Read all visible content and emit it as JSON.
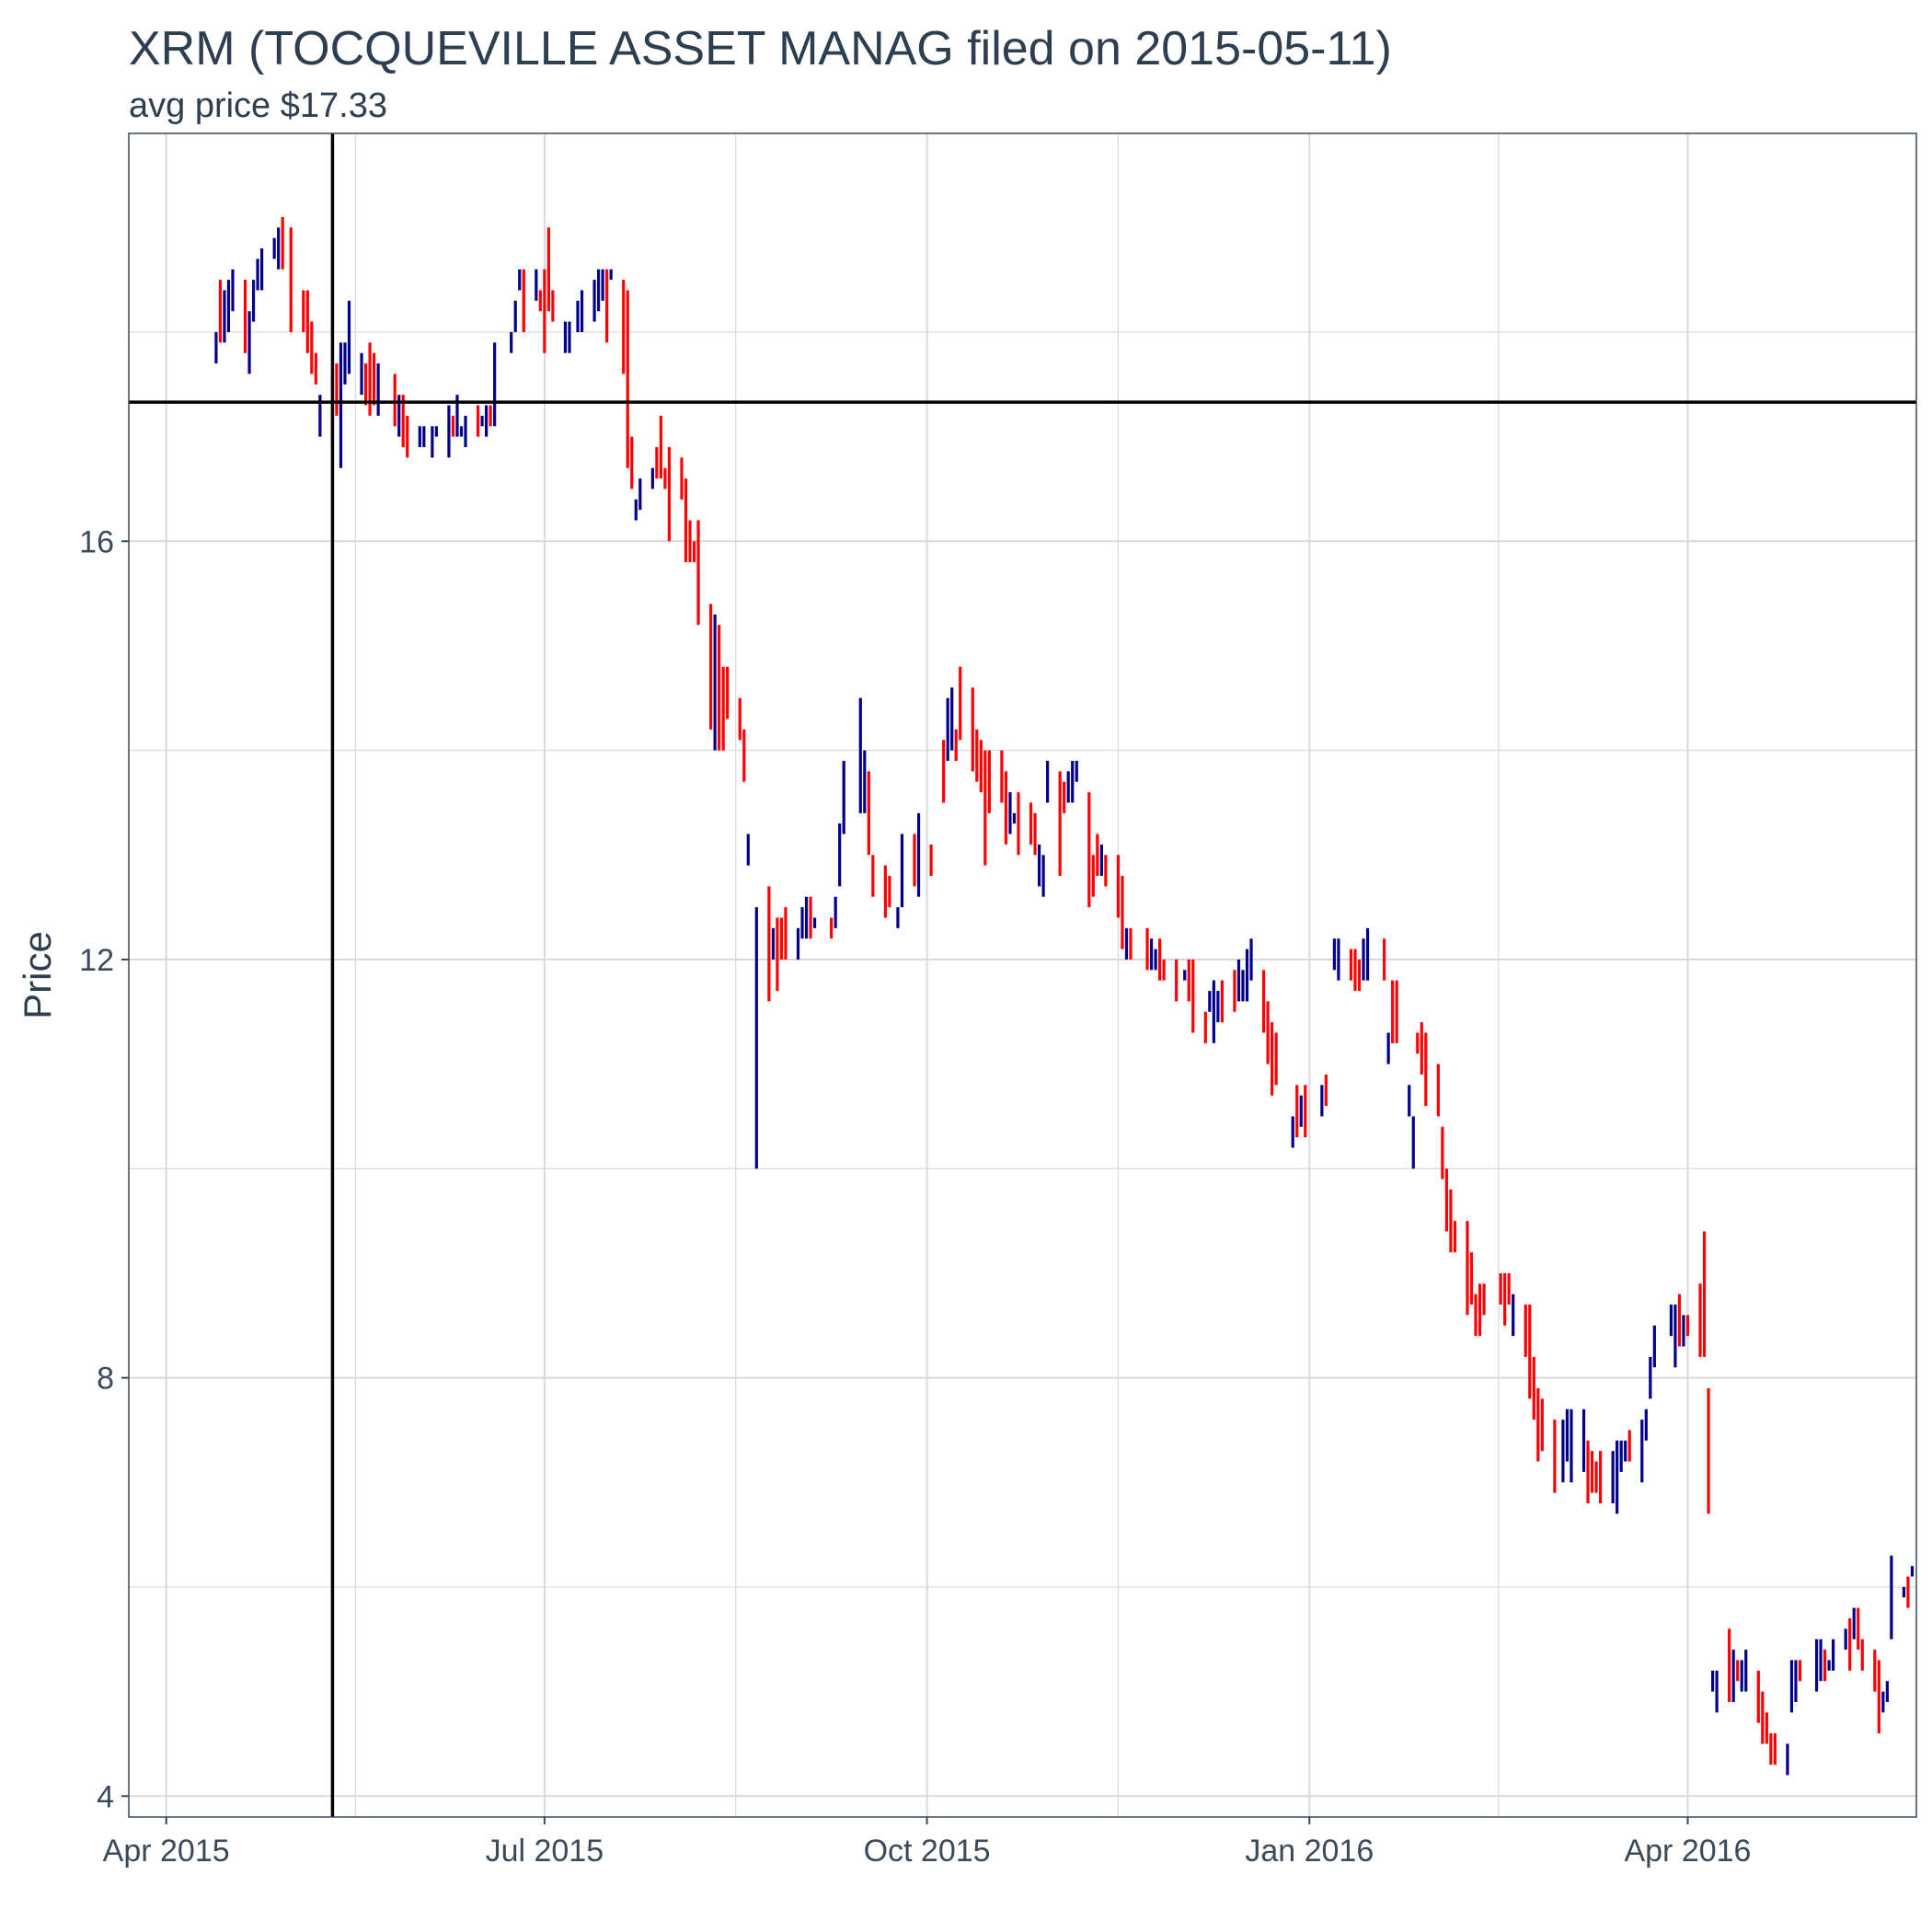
{
  "chart_data": {
    "type": "ohlc",
    "title": "XRM (TOCQUEVILLE ASSET MANAG filed on 2015-05-11)",
    "subtitle": "avg price $17.33",
    "xlabel": "",
    "ylabel": "Price",
    "x_tick_labels": [
      "Apr 2015",
      "Jul 2015",
      "Oct 2015",
      "Jan 2016",
      "Apr 2016"
    ],
    "x_tick_dates": [
      "2015-04-01",
      "2015-07-01",
      "2015-10-01",
      "2016-01-01",
      "2016-04-01"
    ],
    "y_ticks": [
      4,
      8,
      12,
      16
    ],
    "y_minor_ticks": [
      6,
      10,
      14,
      18
    ],
    "xlim": [
      "2015-03-23",
      "2016-05-26"
    ],
    "ylim": [
      3.8,
      19.9
    ],
    "grid": true,
    "legend": "none",
    "colors": {
      "up": "#00008b",
      "down": "#ff0000",
      "reference": "#000000",
      "grid": "#d9d9d9",
      "border": "#34495e"
    },
    "reference_lines": {
      "filing_date": "2015-05-11",
      "avg_price": 17.33
    },
    "up_bars": [
      [
        "2015-04-13",
        17.7,
        18.0
      ],
      [
        "2015-04-15",
        17.9,
        18.4
      ],
      [
        "2015-04-16",
        18.0,
        18.5
      ],
      [
        "2015-04-17",
        18.2,
        18.6
      ],
      [
        "2015-04-21",
        17.6,
        18.2
      ],
      [
        "2015-04-22",
        18.1,
        18.5
      ],
      [
        "2015-04-23",
        18.4,
        18.7
      ],
      [
        "2015-04-24",
        18.4,
        18.8
      ],
      [
        "2015-04-27",
        18.7,
        18.9
      ],
      [
        "2015-04-28",
        18.6,
        19.0
      ],
      [
        "2015-05-08",
        17.0,
        17.4
      ],
      [
        "2015-05-11",
        16.9,
        17.6
      ],
      [
        "2015-05-13",
        16.7,
        17.9
      ],
      [
        "2015-05-14",
        17.5,
        17.9
      ],
      [
        "2015-05-15",
        17.6,
        18.3
      ],
      [
        "2015-05-18",
        17.4,
        17.8
      ],
      [
        "2015-05-22",
        17.2,
        17.7
      ],
      [
        "2015-05-27",
        17.0,
        17.4
      ],
      [
        "2015-06-01",
        16.9,
        17.1
      ],
      [
        "2015-06-02",
        16.9,
        17.1
      ],
      [
        "2015-06-04",
        16.8,
        17.1
      ],
      [
        "2015-06-05",
        17.0,
        17.1
      ],
      [
        "2015-06-08",
        16.8,
        17.3
      ],
      [
        "2015-06-10",
        17.0,
        17.4
      ],
      [
        "2015-06-11",
        17.0,
        17.1
      ],
      [
        "2015-06-12",
        16.9,
        17.2
      ],
      [
        "2015-06-16",
        17.1,
        17.2
      ],
      [
        "2015-06-17",
        17.0,
        17.3
      ],
      [
        "2015-06-19",
        17.1,
        17.9
      ],
      [
        "2015-06-23",
        17.8,
        18.0
      ],
      [
        "2015-06-24",
        18.0,
        18.3
      ],
      [
        "2015-06-25",
        18.4,
        18.6
      ],
      [
        "2015-06-29",
        18.3,
        18.6
      ],
      [
        "2015-07-06",
        17.8,
        18.1
      ],
      [
        "2015-07-07",
        17.8,
        18.1
      ],
      [
        "2015-07-09",
        18.0,
        18.3
      ],
      [
        "2015-07-10",
        18.0,
        18.4
      ],
      [
        "2015-07-13",
        18.1,
        18.5
      ],
      [
        "2015-07-14",
        18.2,
        18.6
      ],
      [
        "2015-07-15",
        18.3,
        18.6
      ],
      [
        "2015-07-17",
        18.5,
        18.6
      ],
      [
        "2015-07-23",
        16.2,
        16.4
      ],
      [
        "2015-07-24",
        16.3,
        16.6
      ],
      [
        "2015-07-27",
        16.5,
        16.7
      ],
      [
        "2015-08-11",
        14.0,
        15.3
      ],
      [
        "2015-08-19",
        12.9,
        13.2
      ],
      [
        "2015-08-21",
        10.0,
        12.5
      ],
      [
        "2015-08-25",
        12.0,
        12.3
      ],
      [
        "2015-08-31",
        12.0,
        12.3
      ],
      [
        "2015-09-01",
        12.2,
        12.5
      ],
      [
        "2015-09-02",
        12.2,
        12.6
      ],
      [
        "2015-09-04",
        12.3,
        12.4
      ],
      [
        "2015-09-09",
        12.3,
        12.6
      ],
      [
        "2015-09-10",
        12.7,
        13.3
      ],
      [
        "2015-09-11",
        13.2,
        13.9
      ],
      [
        "2015-09-15",
        13.4,
        14.5
      ],
      [
        "2015-09-16",
        13.4,
        14.0
      ],
      [
        "2015-09-24",
        12.3,
        12.5
      ],
      [
        "2015-09-25",
        12.5,
        13.2
      ],
      [
        "2015-09-29",
        12.6,
        13.4
      ],
      [
        "2015-10-06",
        13.9,
        14.5
      ],
      [
        "2015-10-07",
        14.0,
        14.6
      ],
      [
        "2015-10-21",
        13.2,
        13.6
      ],
      [
        "2015-10-22",
        13.3,
        13.4
      ],
      [
        "2015-10-28",
        12.7,
        13.1
      ],
      [
        "2015-10-29",
        12.6,
        13.0
      ],
      [
        "2015-10-30",
        13.5,
        13.9
      ],
      [
        "2015-11-04",
        13.5,
        13.8
      ],
      [
        "2015-11-05",
        13.5,
        13.9
      ],
      [
        "2015-11-06",
        13.7,
        13.9
      ],
      [
        "2015-11-12",
        12.8,
        13.1
      ],
      [
        "2015-11-18",
        12.0,
        12.3
      ],
      [
        "2015-11-24",
        11.9,
        12.2
      ],
      [
        "2015-11-25",
        11.9,
        12.1
      ],
      [
        "2015-12-02",
        11.8,
        11.9
      ],
      [
        "2015-12-08",
        11.5,
        11.7
      ],
      [
        "2015-12-09",
        11.2,
        11.8
      ],
      [
        "2015-12-10",
        11.4,
        11.7
      ],
      [
        "2015-12-15",
        11.6,
        12.0
      ],
      [
        "2015-12-16",
        11.6,
        11.9
      ],
      [
        "2015-12-17",
        11.6,
        12.1
      ],
      [
        "2015-12-18",
        11.8,
        12.2
      ],
      [
        "2015-12-28",
        10.2,
        10.5
      ],
      [
        "2015-12-30",
        10.4,
        10.7
      ],
      [
        "2016-01-04",
        10.5,
        10.8
      ],
      [
        "2016-01-07",
        11.9,
        12.2
      ],
      [
        "2016-01-08",
        11.8,
        12.2
      ],
      [
        "2016-01-14",
        11.8,
        12.2
      ],
      [
        "2016-01-15",
        11.8,
        12.3
      ],
      [
        "2016-01-20",
        11.0,
        11.3
      ],
      [
        "2016-01-25",
        10.5,
        10.8
      ],
      [
        "2016-01-26",
        10.0,
        10.5
      ],
      [
        "2016-02-19",
        8.4,
        8.8
      ],
      [
        "2016-03-02",
        7.0,
        7.6
      ],
      [
        "2016-03-03",
        7.2,
        7.7
      ],
      [
        "2016-03-04",
        7.0,
        7.7
      ],
      [
        "2016-03-07",
        7.1,
        7.7
      ],
      [
        "2016-03-14",
        6.8,
        7.3
      ],
      [
        "2016-03-15",
        6.7,
        7.4
      ],
      [
        "2016-03-16",
        7.1,
        7.4
      ],
      [
        "2016-03-17",
        7.2,
        7.4
      ],
      [
        "2016-03-21",
        7.0,
        7.6
      ],
      [
        "2016-03-22",
        7.4,
        7.7
      ],
      [
        "2016-03-23",
        7.8,
        8.2
      ],
      [
        "2016-03-24",
        8.1,
        8.5
      ],
      [
        "2016-03-28",
        8.4,
        8.7
      ],
      [
        "2016-03-29",
        8.1,
        8.7
      ],
      [
        "2016-03-31",
        8.3,
        8.6
      ],
      [
        "2016-04-07",
        5.0,
        5.2
      ],
      [
        "2016-04-08",
        4.8,
        5.2
      ],
      [
        "2016-04-12",
        4.9,
        5.4
      ],
      [
        "2016-04-14",
        5.0,
        5.3
      ],
      [
        "2016-04-15",
        5.0,
        5.4
      ],
      [
        "2016-04-25",
        4.2,
        4.5
      ],
      [
        "2016-04-26",
        4.8,
        5.3
      ],
      [
        "2016-04-27",
        4.9,
        5.3
      ],
      [
        "2016-05-02",
        5.0,
        5.5
      ],
      [
        "2016-05-03",
        5.1,
        5.5
      ],
      [
        "2016-05-05",
        5.2,
        5.3
      ],
      [
        "2016-05-06",
        5.2,
        5.5
      ],
      [
        "2016-05-09",
        5.4,
        5.6
      ],
      [
        "2016-05-11",
        5.5,
        5.8
      ],
      [
        "2016-05-18",
        4.8,
        5.0
      ],
      [
        "2016-05-19",
        4.9,
        5.1
      ],
      [
        "2016-05-20",
        5.5,
        6.3
      ],
      [
        "2016-05-23",
        5.9,
        6.0
      ],
      [
        "2016-05-25",
        6.1,
        6.2
      ]
    ],
    "down_bars": [
      [
        "2015-04-14",
        17.9,
        18.5
      ],
      [
        "2015-04-20",
        17.8,
        18.5
      ],
      [
        "2015-04-29",
        18.6,
        19.1
      ],
      [
        "2015-05-01",
        18.0,
        19.0
      ],
      [
        "2015-05-04",
        18.0,
        18.4
      ],
      [
        "2015-05-05",
        17.8,
        18.4
      ],
      [
        "2015-05-06",
        17.6,
        18.1
      ],
      [
        "2015-05-07",
        17.5,
        17.8
      ],
      [
        "2015-05-12",
        17.2,
        17.7
      ],
      [
        "2015-05-19",
        17.3,
        17.7
      ],
      [
        "2015-05-20",
        17.2,
        17.9
      ],
      [
        "2015-05-21",
        17.3,
        17.8
      ],
      [
        "2015-05-26",
        17.1,
        17.6
      ],
      [
        "2015-05-28",
        16.9,
        17.4
      ],
      [
        "2015-05-29",
        16.8,
        17.2
      ],
      [
        "2015-06-09",
        17.0,
        17.2
      ],
      [
        "2015-06-15",
        17.0,
        17.3
      ],
      [
        "2015-06-18",
        17.1,
        17.3
      ],
      [
        "2015-06-26",
        18.0,
        18.6
      ],
      [
        "2015-06-30",
        18.2,
        18.4
      ],
      [
        "2015-07-01",
        17.8,
        18.6
      ],
      [
        "2015-07-02",
        18.2,
        19.0
      ],
      [
        "2015-07-03",
        18.1,
        18.4
      ],
      [
        "2015-07-16",
        17.9,
        18.6
      ],
      [
        "2015-07-20",
        17.6,
        18.5
      ],
      [
        "2015-07-21",
        16.7,
        18.4
      ],
      [
        "2015-07-22",
        16.5,
        17.0
      ],
      [
        "2015-07-28",
        16.6,
        16.9
      ],
      [
        "2015-07-29",
        16.6,
        17.2
      ],
      [
        "2015-07-30",
        16.5,
        16.7
      ],
      [
        "2015-07-31",
        16.0,
        16.9
      ],
      [
        "2015-08-03",
        16.4,
        16.8
      ],
      [
        "2015-08-04",
        15.8,
        16.6
      ],
      [
        "2015-08-05",
        15.8,
        16.2
      ],
      [
        "2015-08-06",
        15.8,
        16.0
      ],
      [
        "2015-08-07",
        15.2,
        16.2
      ],
      [
        "2015-08-10",
        14.2,
        15.4
      ],
      [
        "2015-08-12",
        14.0,
        15.2
      ],
      [
        "2015-08-13",
        14.0,
        14.8
      ],
      [
        "2015-08-14",
        14.3,
        14.8
      ],
      [
        "2015-08-17",
        14.1,
        14.5
      ],
      [
        "2015-08-18",
        13.7,
        14.2
      ],
      [
        "2015-08-24",
        11.6,
        12.7
      ],
      [
        "2015-08-26",
        11.7,
        12.4
      ],
      [
        "2015-08-27",
        12.0,
        12.4
      ],
      [
        "2015-08-28",
        12.0,
        12.5
      ],
      [
        "2015-09-03",
        12.2,
        12.6
      ],
      [
        "2015-09-08",
        12.2,
        12.4
      ],
      [
        "2015-09-17",
        13.0,
        13.8
      ],
      [
        "2015-09-18",
        12.6,
        13.0
      ],
      [
        "2015-09-21",
        12.4,
        12.9
      ],
      [
        "2015-09-22",
        12.5,
        12.8
      ],
      [
        "2015-09-28",
        12.7,
        13.2
      ],
      [
        "2015-10-02",
        12.8,
        13.1
      ],
      [
        "2015-10-05",
        13.5,
        14.1
      ],
      [
        "2015-10-08",
        13.9,
        14.2
      ],
      [
        "2015-10-09",
        14.1,
        14.8
      ],
      [
        "2015-10-12",
        13.8,
        14.6
      ],
      [
        "2015-10-13",
        13.7,
        14.2
      ],
      [
        "2015-10-14",
        13.6,
        14.1
      ],
      [
        "2015-10-15",
        12.9,
        14.0
      ],
      [
        "2015-10-16",
        13.4,
        14.0
      ],
      [
        "2015-10-19",
        13.5,
        14.0
      ],
      [
        "2015-10-20",
        13.1,
        13.8
      ],
      [
        "2015-10-23",
        13.0,
        13.6
      ],
      [
        "2015-10-26",
        13.1,
        13.5
      ],
      [
        "2015-10-27",
        13.0,
        13.4
      ],
      [
        "2015-11-02",
        12.8,
        13.8
      ],
      [
        "2015-11-03",
        13.4,
        13.7
      ],
      [
        "2015-11-09",
        12.5,
        13.6
      ],
      [
        "2015-11-10",
        12.6,
        13.0
      ],
      [
        "2015-11-11",
        12.8,
        13.2
      ],
      [
        "2015-11-13",
        12.7,
        13.0
      ],
      [
        "2015-11-16",
        12.4,
        13.0
      ],
      [
        "2015-11-17",
        12.1,
        12.8
      ],
      [
        "2015-11-19",
        12.0,
        12.3
      ],
      [
        "2015-11-23",
        11.9,
        12.3
      ],
      [
        "2015-11-26",
        11.8,
        12.2
      ],
      [
        "2015-11-27",
        11.8,
        12.0
      ],
      [
        "2015-11-30",
        11.6,
        12.0
      ],
      [
        "2015-12-03",
        11.6,
        12.0
      ],
      [
        "2015-12-04",
        11.3,
        12.0
      ],
      [
        "2015-12-07",
        11.2,
        11.5
      ],
      [
        "2015-12-11",
        11.4,
        11.8
      ],
      [
        "2015-12-14",
        11.5,
        11.9
      ],
      [
        "2015-12-21",
        11.3,
        11.9
      ],
      [
        "2015-12-22",
        11.0,
        11.6
      ],
      [
        "2015-12-23",
        10.7,
        11.4
      ],
      [
        "2015-12-24",
        10.8,
        11.3
      ],
      [
        "2015-12-29",
        10.3,
        10.8
      ],
      [
        "2015-12-31",
        10.3,
        10.8
      ],
      [
        "2016-01-05",
        10.6,
        10.9
      ],
      [
        "2016-01-11",
        11.8,
        12.1
      ],
      [
        "2016-01-12",
        11.7,
        12.1
      ],
      [
        "2016-01-13",
        11.7,
        12.0
      ],
      [
        "2016-01-19",
        11.8,
        12.2
      ],
      [
        "2016-01-21",
        11.2,
        11.8
      ],
      [
        "2016-01-22",
        11.2,
        11.8
      ],
      [
        "2016-01-27",
        11.1,
        11.3
      ],
      [
        "2016-01-28",
        10.9,
        11.4
      ],
      [
        "2016-01-29",
        10.6,
        11.3
      ],
      [
        "2016-02-01",
        10.5,
        11.0
      ],
      [
        "2016-02-02",
        9.9,
        10.4
      ],
      [
        "2016-02-03",
        9.4,
        10.0
      ],
      [
        "2016-02-04",
        9.2,
        9.8
      ],
      [
        "2016-02-05",
        9.2,
        9.5
      ],
      [
        "2016-02-08",
        8.6,
        9.5
      ],
      [
        "2016-02-09",
        8.7,
        9.2
      ],
      [
        "2016-02-10",
        8.4,
        8.8
      ],
      [
        "2016-02-11",
        8.4,
        8.9
      ],
      [
        "2016-02-12",
        8.6,
        8.9
      ],
      [
        "2016-02-16",
        8.7,
        9.0
      ],
      [
        "2016-02-17",
        8.5,
        9.0
      ],
      [
        "2016-02-18",
        8.7,
        9.0
      ],
      [
        "2016-02-22",
        8.2,
        8.7
      ],
      [
        "2016-02-23",
        7.8,
        8.7
      ],
      [
        "2016-02-24",
        7.6,
        8.2
      ],
      [
        "2016-02-25",
        7.2,
        7.9
      ],
      [
        "2016-02-26",
        7.3,
        7.8
      ],
      [
        "2016-02-29",
        6.9,
        7.6
      ],
      [
        "2016-03-08",
        6.8,
        7.4
      ],
      [
        "2016-03-09",
        6.9,
        7.3
      ],
      [
        "2016-03-10",
        6.9,
        7.2
      ],
      [
        "2016-03-11",
        6.8,
        7.3
      ],
      [
        "2016-03-18",
        7.2,
        7.5
      ],
      [
        "2016-03-30",
        8.3,
        8.8
      ],
      [
        "2016-04-01",
        8.4,
        8.6
      ],
      [
        "2016-04-04",
        8.2,
        8.9
      ],
      [
        "2016-04-05",
        8.2,
        9.4
      ],
      [
        "2016-04-06",
        6.7,
        7.9
      ],
      [
        "2016-04-11",
        4.9,
        5.6
      ],
      [
        "2016-04-13",
        5.1,
        5.3
      ],
      [
        "2016-04-18",
        4.7,
        5.2
      ],
      [
        "2016-04-19",
        4.5,
        5.0
      ],
      [
        "2016-04-20",
        4.5,
        4.8
      ],
      [
        "2016-04-21",
        4.3,
        4.6
      ],
      [
        "2016-04-22",
        4.3,
        4.6
      ],
      [
        "2016-04-28",
        5.1,
        5.3
      ],
      [
        "2016-05-04",
        5.1,
        5.4
      ],
      [
        "2016-05-10",
        5.2,
        5.7
      ],
      [
        "2016-05-12",
        5.4,
        5.8
      ],
      [
        "2016-05-13",
        5.2,
        5.5
      ],
      [
        "2016-05-16",
        5.0,
        5.4
      ],
      [
        "2016-05-17",
        4.6,
        5.3
      ],
      [
        "2016-05-24",
        5.8,
        6.1
      ]
    ]
  }
}
